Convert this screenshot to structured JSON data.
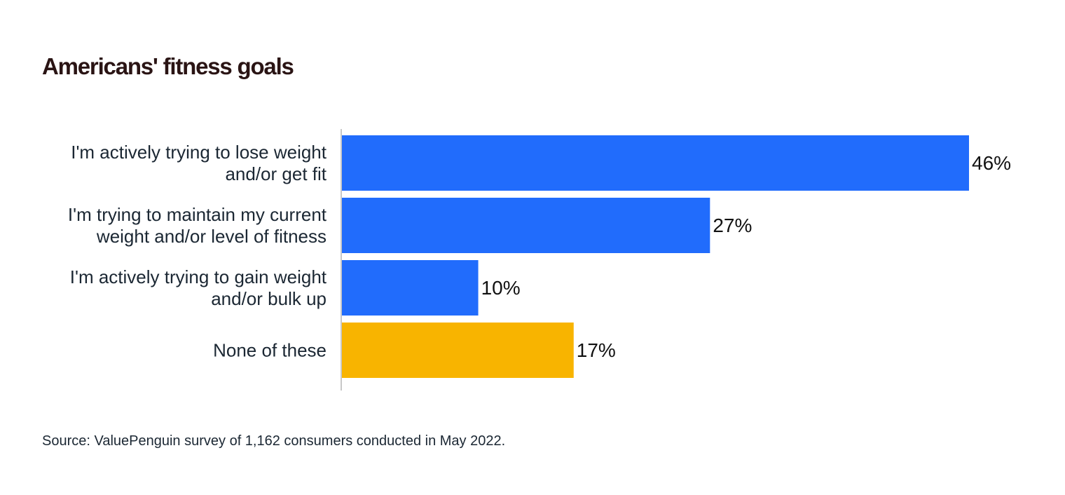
{
  "chart_data": {
    "type": "bar",
    "orientation": "horizontal",
    "title": "Americans' fitness goals",
    "categories": [
      [
        "I'm actively trying to lose weight",
        "and/or get fit"
      ],
      [
        "I'm trying to maintain my current",
        "weight and/or level of fitness"
      ],
      [
        "I'm actively trying to gain weight",
        "and/or bulk up"
      ],
      [
        "None of these"
      ]
    ],
    "values": [
      46,
      27,
      10,
      17
    ],
    "value_labels": [
      "46%",
      "27%",
      "10%",
      "17%"
    ],
    "colors": [
      "#216cfc",
      "#216cfc",
      "#216cfc",
      "#f8b400"
    ],
    "xlim": [
      0,
      46
    ],
    "grid": false,
    "legend": "none",
    "xlabel": "",
    "ylabel": ""
  },
  "source": "Source: ValuePenguin survey of 1,162 consumers conducted in May 2022."
}
